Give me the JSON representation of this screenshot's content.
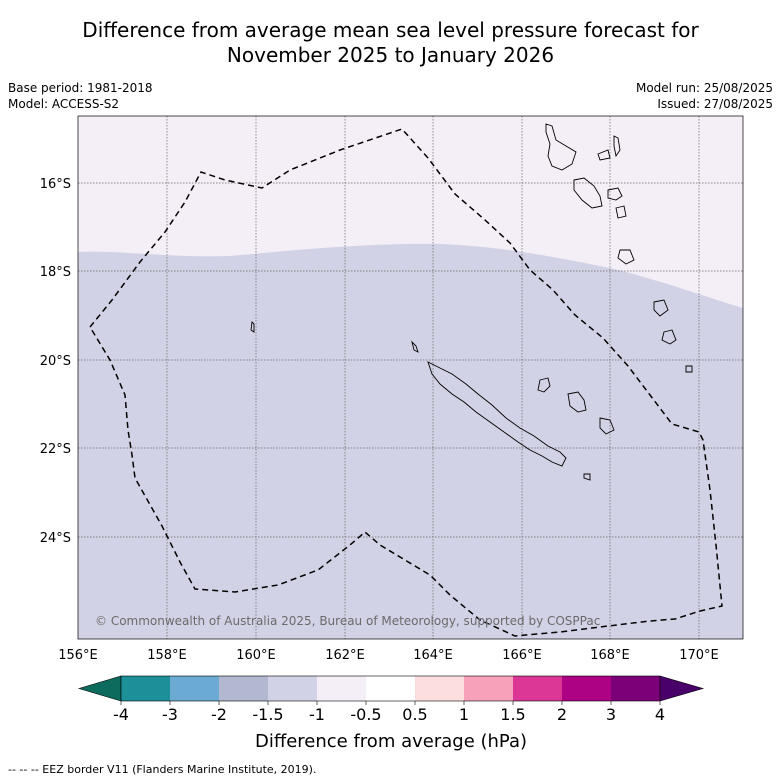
{
  "title_line1": "Difference from average mean sea level pressure forecast for",
  "title_line2": "November 2025 to January 2026",
  "base_period": "Base period: 1981-2018",
  "model": "Model: ACCESS-S2",
  "model_run": "Model run: 25/08/2025",
  "issued": "Issued: 27/08/2025",
  "copyright": "© Commonwealth of Australia 2025, Bureau of Meteorology, supported by COSPPac",
  "lon_labels": [
    "156°E",
    "158°E",
    "160°E",
    "162°E",
    "164°E",
    "166°E",
    "168°E",
    "170°E"
  ],
  "lat_labels": [
    "16°S",
    "18°S",
    "20°S",
    "22°S",
    "24°S"
  ],
  "colorbar": {
    "label": "Difference from average (hPa)",
    "ticks": [
      "-4",
      "-3",
      "-2",
      "-1.5",
      "-1",
      "-0.5",
      "0.5",
      "1",
      "1.5",
      "2",
      "3",
      "4"
    ],
    "colors": [
      "#1b9098",
      "#6aaad3",
      "#b1b8d0",
      "#d2d2e6",
      "#f4eef6",
      "#ffffff",
      "#fddede",
      "#f7a2ba",
      "#dc3697",
      "#ad0284",
      "#7c0178"
    ],
    "under_color": "#0d6b5e",
    "over_color": "#4a0069"
  },
  "field_colors": {
    "north": "#f4eef6",
    "south": "#d2d2e6"
  },
  "eez_legend": "--  --  -- EEZ border V11 (Flanders Marine Institute, 2019)."
}
